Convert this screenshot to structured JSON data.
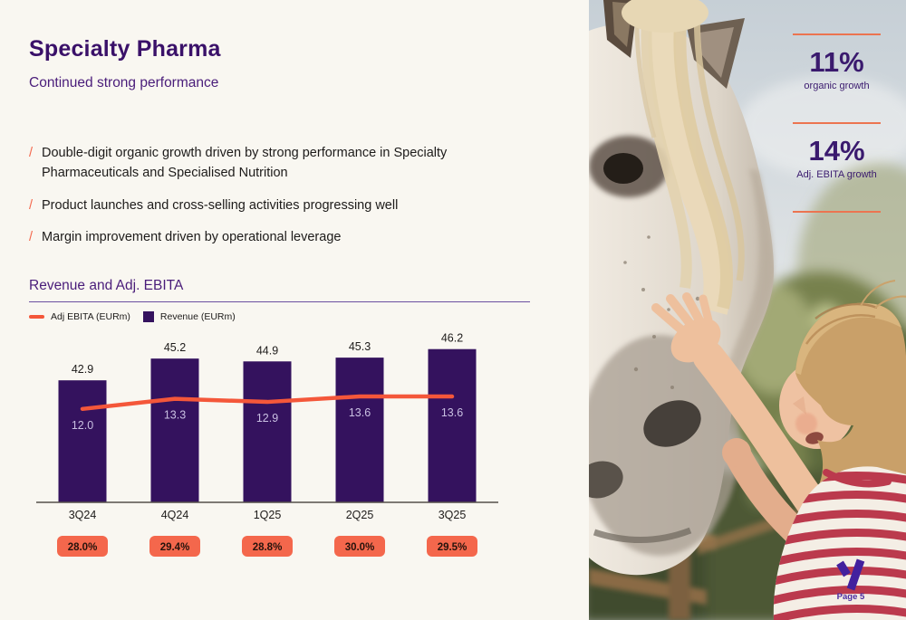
{
  "header": {
    "title": "Specialty Pharma",
    "subtitle": "Continued strong performance"
  },
  "bullets": [
    {
      "marker": "/",
      "text": "Double-digit organic growth driven by strong performance in Specialty Pharmaceuticals and Specialised Nutrition"
    },
    {
      "marker": "/",
      "text": "Product launches and cross-selling activities progressing well"
    },
    {
      "marker": "/",
      "text": "Margin improvement driven by operational leverage"
    }
  ],
  "chart_data": {
    "type": "bar+line",
    "title": "Revenue and Adj. EBITA",
    "categories": [
      "3Q24",
      "4Q24",
      "1Q25",
      "2Q25",
      "3Q25"
    ],
    "series": [
      {
        "name": "Adj EBITA (EURm)",
        "type": "line",
        "color": "#f4573a",
        "values": [
          12.0,
          13.3,
          12.9,
          13.6,
          13.6
        ]
      },
      {
        "name": "Revenue (EURm)",
        "type": "bar",
        "color": "#34125e",
        "values": [
          42.9,
          45.2,
          44.9,
          45.3,
          46.2
        ]
      }
    ],
    "margin_labels": [
      "28.0%",
      "29.4%",
      "28.8%",
      "30.0%",
      "29.5%"
    ],
    "margin_badge_color": "#f4674c",
    "value_labels_shown": true,
    "baseline_value": 30,
    "legend_position": "top-left",
    "grid": false
  },
  "stats": [
    {
      "value": "11%",
      "label": "organic growth"
    },
    {
      "value": "14%",
      "label": "Adj. EBITA growth"
    }
  ],
  "footer": {
    "page_label": "Page 5",
    "logo_icon": "vimian-v-logo"
  },
  "photo": {
    "description": "Child in a red-and-white striped shirt reaching up to pet the face of a white horse, outdoors near a wooden fence"
  },
  "colors": {
    "accent_purple": "#3a1169",
    "accent_coral": "#f4674c",
    "bar_purple": "#34125e",
    "line_coral": "#f4573a",
    "stat_rule_orange": "#ec7450",
    "background_cream": "#f9f7f1"
  }
}
